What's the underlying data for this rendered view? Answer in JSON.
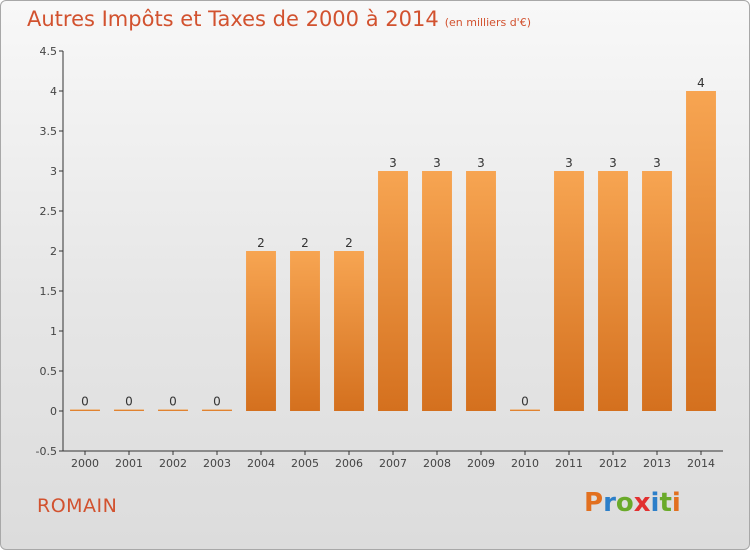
{
  "header": {
    "title": "Autres Impôts et Taxes de 2000 à 2014",
    "subtitle": "(en milliers d'€)"
  },
  "commune": "ROMAIN",
  "logo": {
    "text": "Proxiti",
    "letter_colors": [
      "#e2701f",
      "#2c7fc9",
      "#6aaa2a",
      "#e23030",
      "#2c7fc9",
      "#6aaa2a",
      "#e2701f"
    ]
  },
  "chart_data": {
    "type": "bar",
    "categories": [
      "2000",
      "2001",
      "2002",
      "2003",
      "2004",
      "2005",
      "2006",
      "2007",
      "2008",
      "2009",
      "2010",
      "2011",
      "2012",
      "2013",
      "2014"
    ],
    "values": [
      0,
      0,
      0,
      0,
      2,
      2,
      2,
      3,
      3,
      3,
      0,
      3,
      3,
      3,
      4
    ],
    "value_labels": [
      "0",
      "0",
      "0",
      "0",
      "2",
      "2",
      "2",
      "3",
      "3",
      "3",
      "0",
      "3",
      "3",
      "3",
      "4"
    ],
    "yticks": [
      "-0.5",
      "0",
      "0.5",
      "1",
      "1.5",
      "2",
      "2.5",
      "3",
      "3.5",
      "4",
      "4.5"
    ],
    "ylim": [
      -0.5,
      4.5
    ],
    "grid": false,
    "bar_color_top": "#f7a552",
    "bar_color_bottom": "#d4701e"
  }
}
